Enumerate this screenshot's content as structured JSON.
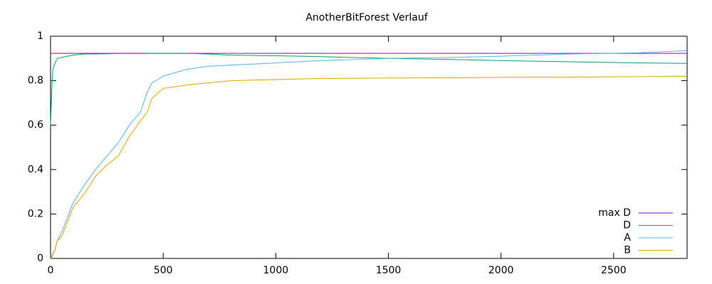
{
  "chart_data": {
    "type": "line",
    "title": "AnotherBitForest Verlauf",
    "x": [
      0,
      5,
      10,
      20,
      30,
      50,
      100,
      150,
      200,
      250,
      300,
      350,
      400,
      430,
      450,
      500,
      600,
      700,
      800,
      1000,
      1200,
      1500,
      1800,
      2000,
      2300,
      2600,
      2825
    ],
    "series": [
      {
        "name": "max D",
        "color": "#9400d3",
        "values": [
          0.923,
          0.923,
          0.923,
          0.923,
          0.923,
          0.923,
          0.923,
          0.923,
          0.923,
          0.923,
          0.923,
          0.923,
          0.923,
          0.923,
          0.923,
          0.923,
          0.923,
          0.923,
          0.923,
          0.923,
          0.923,
          0.923,
          0.923,
          0.923,
          0.923,
          0.923,
          0.923
        ]
      },
      {
        "name": "D",
        "color": "#009e73",
        "values": [
          0.6,
          0.75,
          0.85,
          0.88,
          0.9,
          0.905,
          0.915,
          0.92,
          0.92,
          0.921,
          0.922,
          0.922,
          0.922,
          0.923,
          0.923,
          0.923,
          0.923,
          0.92,
          0.915,
          0.912,
          0.908,
          0.9,
          0.895,
          0.89,
          0.885,
          0.88,
          0.878
        ]
      },
      {
        "name": "A",
        "color": "#56b4e9",
        "values": [
          0,
          0.01,
          0.02,
          0.04,
          0.08,
          0.12,
          0.25,
          0.33,
          0.4,
          0.46,
          0.52,
          0.6,
          0.66,
          0.75,
          0.79,
          0.82,
          0.85,
          0.865,
          0.87,
          0.88,
          0.89,
          0.9,
          0.905,
          0.91,
          0.92,
          0.925,
          0.935
        ]
      },
      {
        "name": "B",
        "color": "#e69f00",
        "values": [
          0,
          0.005,
          0.015,
          0.04,
          0.08,
          0.1,
          0.23,
          0.29,
          0.37,
          0.42,
          0.46,
          0.55,
          0.62,
          0.66,
          0.72,
          0.765,
          0.78,
          0.79,
          0.8,
          0.805,
          0.81,
          0.812,
          0.813,
          0.815,
          0.816,
          0.818,
          0.82
        ]
      }
    ],
    "xlim": [
      0,
      2826
    ],
    "xticks": [
      0,
      500,
      1000,
      1500,
      2000,
      2500
    ],
    "ylim": [
      0,
      1
    ],
    "yticks": [
      0,
      0.2,
      0.4,
      0.6,
      0.8,
      1
    ],
    "legend": "bottom-right"
  }
}
